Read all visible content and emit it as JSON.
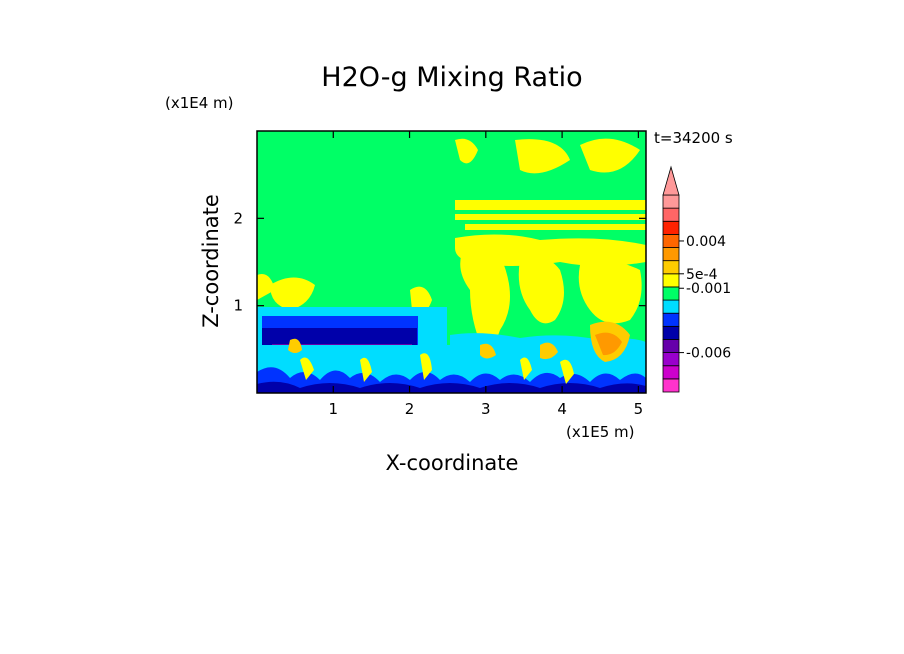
{
  "chart_data": {
    "type": "heatmap",
    "title": "H2O-g Mixing Ratio",
    "time_label": "t=34200 s",
    "xlabel": "X-coordinate",
    "ylabel": "Z-coordinate",
    "x_multiplier": "(x1E5 m)",
    "y_multiplier": "(x1E4 m)",
    "xlim": [
      0,
      5.1
    ],
    "ylim": [
      0,
      3.0
    ],
    "x_ticks": [
      1,
      2,
      3,
      4,
      5
    ],
    "y_ticks": [
      1,
      2
    ],
    "colorbar": {
      "levels": [
        {
          "color": "#ff33cc"
        },
        {
          "color": "#cc00cc"
        },
        {
          "color": "#9900cc"
        },
        {
          "color": "#6600aa"
        },
        {
          "color": "#0000aa"
        },
        {
          "color": "#0033ff"
        },
        {
          "color": "#00ddff"
        },
        {
          "color": "#00ff66"
        },
        {
          "color": "#ffff00"
        },
        {
          "color": "#ffcc00"
        },
        {
          "color": "#ff9900"
        },
        {
          "color": "#ff6600"
        },
        {
          "color": "#ff2200"
        },
        {
          "color": "#ff6666"
        },
        {
          "color": "#ff9999"
        }
      ],
      "labels": [
        {
          "text": "0.004",
          "level": 11.5
        },
        {
          "text": "5e-4",
          "level": 9
        },
        {
          "text": "-0.001",
          "level": 7.9
        },
        {
          "text": "-0.006",
          "level": 3
        }
      ]
    }
  }
}
